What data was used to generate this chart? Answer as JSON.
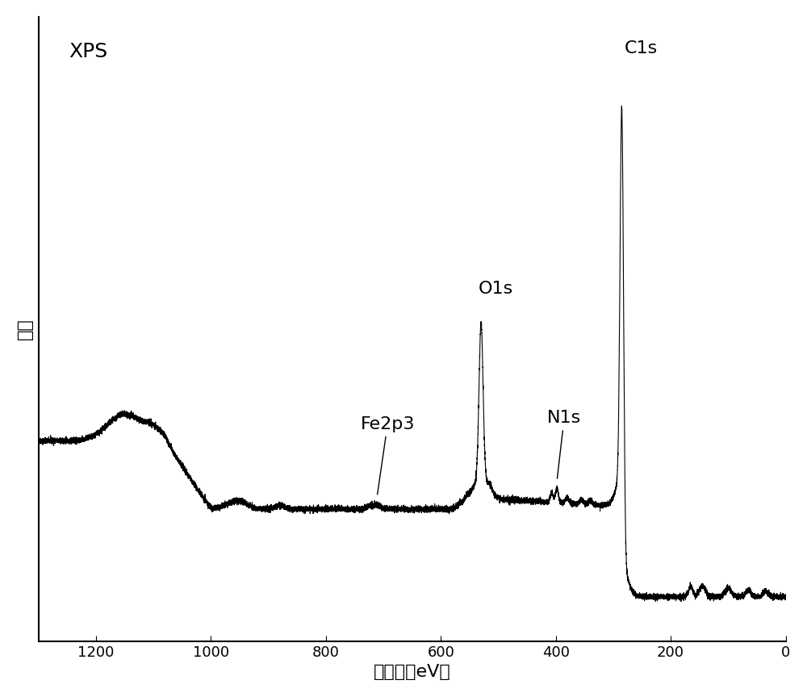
{
  "title": "XPS",
  "xlabel": "结合能（eV）",
  "ylabel": "强度",
  "xlim": [
    1300,
    0
  ],
  "xticks": [
    1200,
    1000,
    800,
    600,
    400,
    200,
    0
  ],
  "background_color": "#ffffff",
  "line_color": "#000000"
}
